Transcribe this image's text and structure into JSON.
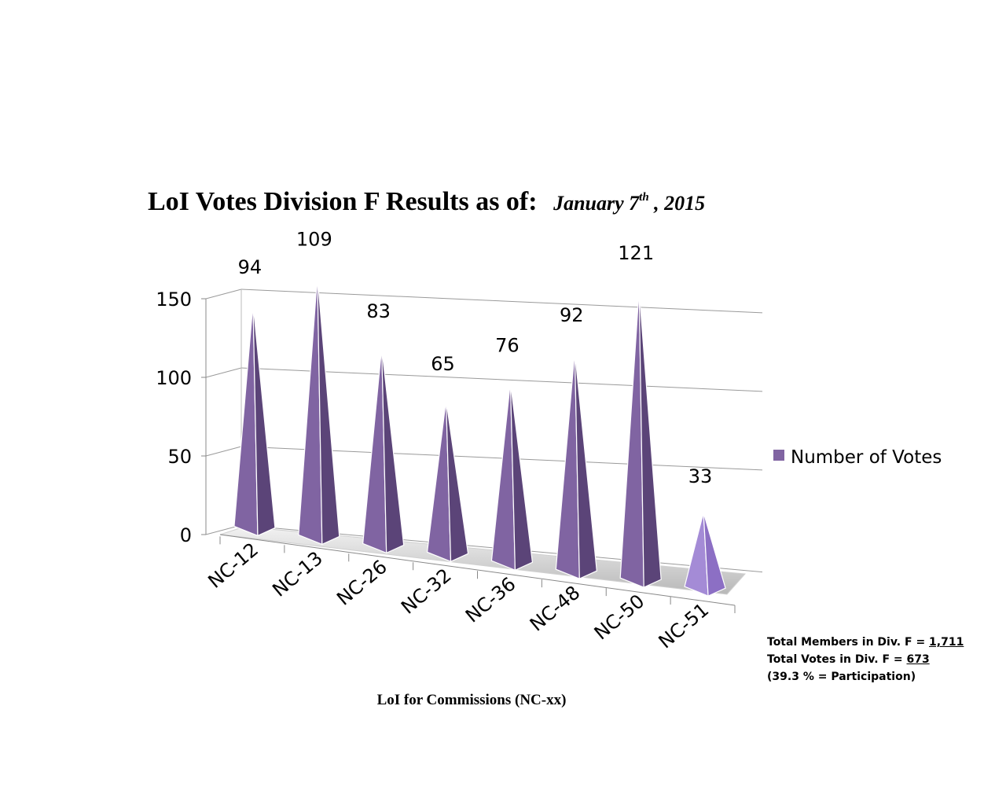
{
  "title": {
    "main": "LoI Votes Division F Results as of:",
    "date_prefix": "January 7",
    "date_sup": "th",
    "date_suffix": " , 2015"
  },
  "chart_data": {
    "type": "bar",
    "categories": [
      "NC-12",
      "NC-13",
      "NC-26",
      "NC-32",
      "NC-36",
      "NC-48",
      "NC-50",
      "NC-51"
    ],
    "series": [
      {
        "name": "Number of Votes",
        "values": [
          94,
          109,
          83,
          65,
          76,
          92,
          121,
          33
        ],
        "color": "#8064a2"
      }
    ],
    "ylim": [
      0,
      150
    ],
    "yticks": [
      0,
      50,
      100,
      150
    ],
    "xlabel": "LoI for Commissions (NC-xx)",
    "legend": "right",
    "grid": true,
    "shape": "pyramid-3d"
  },
  "notes": {
    "members_label": "Total Members in Div. F = ",
    "members_value": "1,711",
    "votes_label": "Total Votes in Div. F = ",
    "votes_value": "673",
    "participation": "(39.3 % = Participation)"
  }
}
